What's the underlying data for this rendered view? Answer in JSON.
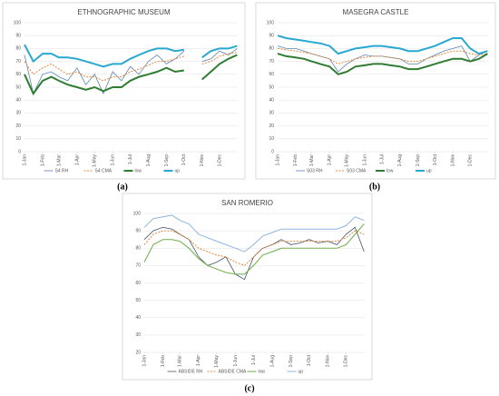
{
  "chart_data": [
    {
      "type": "line",
      "title": "ETHNOGRAPHIC MUSEUM",
      "caption": "(a)",
      "x": [
        0,
        15,
        31,
        46,
        59,
        74,
        90,
        105,
        120,
        135,
        151,
        166,
        181,
        196,
        212,
        227,
        243,
        258,
        273,
        288,
        304,
        319,
        334,
        349,
        364
      ],
      "xlim": [
        0,
        365
      ],
      "xticks": [
        {
          "value": 0,
          "label": "1-Jan"
        },
        {
          "value": 31,
          "label": "1-Feb"
        },
        {
          "value": 59,
          "label": "1-Mar"
        },
        {
          "value": 90,
          "label": "1-Apr"
        },
        {
          "value": 120,
          "label": "1-May"
        },
        {
          "value": 151,
          "label": "1-Jun"
        },
        {
          "value": 181,
          "label": "1-Jul"
        },
        {
          "value": 212,
          "label": "1-Aug"
        },
        {
          "value": 243,
          "label": "1-Sep"
        },
        {
          "value": 273,
          "label": "1-Oct"
        },
        {
          "value": 304,
          "label": "1-Nov"
        },
        {
          "value": 334,
          "label": "1-Dec"
        }
      ],
      "ylim": [
        0,
        100
      ],
      "yticks": [
        0,
        10,
        20,
        30,
        40,
        50,
        60,
        70,
        80,
        90,
        100
      ],
      "grid": true,
      "series": [
        {
          "name": "S4 RH",
          "color": "#5b86b0",
          "width": 0.8,
          "dashed": false,
          "values": [
            75,
            45,
            60,
            62,
            58,
            55,
            65,
            52,
            60,
            45,
            62,
            55,
            66,
            60,
            70,
            75,
            68,
            72,
            78,
            null,
            70,
            72,
            78,
            75,
            80
          ]
        },
        {
          "name": "S4 CMA",
          "color": "#e8873a",
          "width": 1,
          "dashed": true,
          "values": [
            70,
            60,
            65,
            68,
            64,
            60,
            62,
            58,
            58,
            55,
            58,
            58,
            62,
            64,
            67,
            70,
            70,
            72,
            74,
            null,
            68,
            70,
            74,
            76,
            77
          ]
        },
        {
          "name": "low",
          "color": "#2e7d32",
          "width": 2,
          "dashed": false,
          "values": [
            60,
            45,
            55,
            58,
            55,
            52,
            50,
            48,
            50,
            47,
            50,
            50,
            55,
            58,
            60,
            62,
            65,
            62,
            63,
            null,
            56,
            62,
            68,
            72,
            75
          ]
        },
        {
          "name": "up",
          "color": "#29a8d0",
          "width": 2,
          "dashed": false,
          "values": [
            83,
            70,
            76,
            76,
            73,
            73,
            72,
            70,
            68,
            66,
            68,
            68,
            72,
            75,
            78,
            80,
            80,
            78,
            79,
            null,
            73,
            78,
            80,
            80,
            82
          ]
        }
      ]
    },
    {
      "type": "line",
      "title": "MASEGRA CASTLE",
      "caption": "(b)",
      "x": [
        0,
        15,
        31,
        46,
        59,
        74,
        90,
        105,
        120,
        135,
        151,
        166,
        181,
        196,
        212,
        227,
        243,
        258,
        273,
        288,
        304,
        319,
        334,
        349,
        364
      ],
      "xlim": [
        0,
        365
      ],
      "xticks": [
        {
          "value": 0,
          "label": "1-Jan"
        },
        {
          "value": 31,
          "label": "1-Feb"
        },
        {
          "value": 59,
          "label": "1-Mar"
        },
        {
          "value": 90,
          "label": "1-Apr"
        },
        {
          "value": 120,
          "label": "1-May"
        },
        {
          "value": 151,
          "label": "1-Jun"
        },
        {
          "value": 181,
          "label": "1-Jul"
        },
        {
          "value": 212,
          "label": "1-Aug"
        },
        {
          "value": 243,
          "label": "1-Sep"
        },
        {
          "value": 273,
          "label": "1-Oct"
        },
        {
          "value": 304,
          "label": "1-Nov"
        },
        {
          "value": 334,
          "label": "1-Dec"
        }
      ],
      "ylim": [
        0,
        100
      ],
      "yticks": [
        0,
        10,
        20,
        30,
        40,
        50,
        60,
        70,
        80,
        90,
        100
      ],
      "grid": true,
      "series": [
        {
          "name": "S03 RH",
          "color": "#5b86b0",
          "width": 0.8,
          "dashed": false,
          "values": [
            82,
            80,
            80,
            78,
            76,
            74,
            72,
            62,
            68,
            72,
            75,
            74,
            74,
            73,
            72,
            68,
            68,
            72,
            75,
            78,
            80,
            82,
            70,
            75,
            78
          ]
        },
        {
          "name": "S03 CMA",
          "color": "#e8873a",
          "width": 1,
          "dashed": true,
          "values": [
            80,
            79,
            78,
            77,
            76,
            74,
            72,
            68,
            70,
            72,
            73,
            74,
            74,
            73,
            72,
            70,
            70,
            72,
            74,
            76,
            78,
            78,
            76,
            75,
            76
          ]
        },
        {
          "name": "low",
          "color": "#2e7d32",
          "width": 2,
          "dashed": false,
          "values": [
            76,
            74,
            73,
            72,
            70,
            68,
            66,
            60,
            62,
            66,
            67,
            68,
            68,
            67,
            66,
            64,
            64,
            66,
            68,
            70,
            72,
            72,
            70,
            72,
            76
          ]
        },
        {
          "name": "up",
          "color": "#29a8d0",
          "width": 2,
          "dashed": false,
          "values": [
            90,
            88,
            87,
            86,
            85,
            84,
            82,
            76,
            78,
            80,
            81,
            82,
            82,
            81,
            80,
            78,
            78,
            80,
            82,
            85,
            88,
            88,
            80,
            76,
            78
          ]
        }
      ]
    },
    {
      "type": "line",
      "title": "SAN ROMERIO",
      "caption": "(c)",
      "x": [
        0,
        15,
        31,
        46,
        59,
        74,
        90,
        105,
        120,
        135,
        151,
        166,
        181,
        196,
        212,
        227,
        243,
        258,
        273,
        288,
        304,
        319,
        334,
        349,
        364
      ],
      "xlim": [
        0,
        365
      ],
      "xticks": [
        {
          "value": 0,
          "label": "1-Jan"
        },
        {
          "value": 31,
          "label": "1-Feb"
        },
        {
          "value": 59,
          "label": "1-Mar"
        },
        {
          "value": 90,
          "label": "1-Apr"
        },
        {
          "value": 120,
          "label": "1-May"
        },
        {
          "value": 151,
          "label": "1-Jun"
        },
        {
          "value": 181,
          "label": "1-Jul"
        },
        {
          "value": 212,
          "label": "1-Aug"
        },
        {
          "value": 243,
          "label": "1-Sep"
        },
        {
          "value": 273,
          "label": "1-Oct"
        },
        {
          "value": 304,
          "label": "1-Nov"
        },
        {
          "value": 334,
          "label": "1-Dec"
        }
      ],
      "ylim": [
        20,
        100
      ],
      "yticks": [
        20,
        30,
        40,
        50,
        60,
        70,
        80,
        90,
        100
      ],
      "grid": true,
      "series": [
        {
          "name": "ABSIDE RH",
          "color": "#44546a",
          "width": 0.8,
          "dashed": false,
          "values": [
            85,
            90,
            92,
            91,
            88,
            85,
            75,
            70,
            72,
            75,
            65,
            62,
            75,
            80,
            82,
            85,
            82,
            83,
            85,
            83,
            84,
            82,
            88,
            92,
            78
          ]
        },
        {
          "name": "ABSIDE CMA",
          "color": "#e8873a",
          "width": 1,
          "dashed": true,
          "values": [
            82,
            88,
            90,
            90,
            88,
            85,
            80,
            78,
            76,
            75,
            72,
            70,
            75,
            80,
            82,
            84,
            84,
            84,
            84,
            84,
            84,
            84,
            86,
            90,
            88
          ]
        },
        {
          "name": "low",
          "color": "#70ad47",
          "width": 1,
          "dashed": false,
          "values": [
            72,
            82,
            85,
            85,
            84,
            80,
            74,
            70,
            68,
            66,
            65,
            65,
            70,
            76,
            78,
            80,
            80,
            80,
            80,
            80,
            80,
            80,
            82,
            88,
            94
          ]
        },
        {
          "name": "up",
          "color": "#8fb4e0",
          "width": 1,
          "dashed": false,
          "values": [
            92,
            97,
            98,
            99,
            96,
            94,
            88,
            86,
            84,
            82,
            80,
            78,
            82,
            87,
            89,
            91,
            91,
            91,
            91,
            91,
            91,
            91,
            93,
            98,
            96
          ]
        }
      ]
    }
  ]
}
